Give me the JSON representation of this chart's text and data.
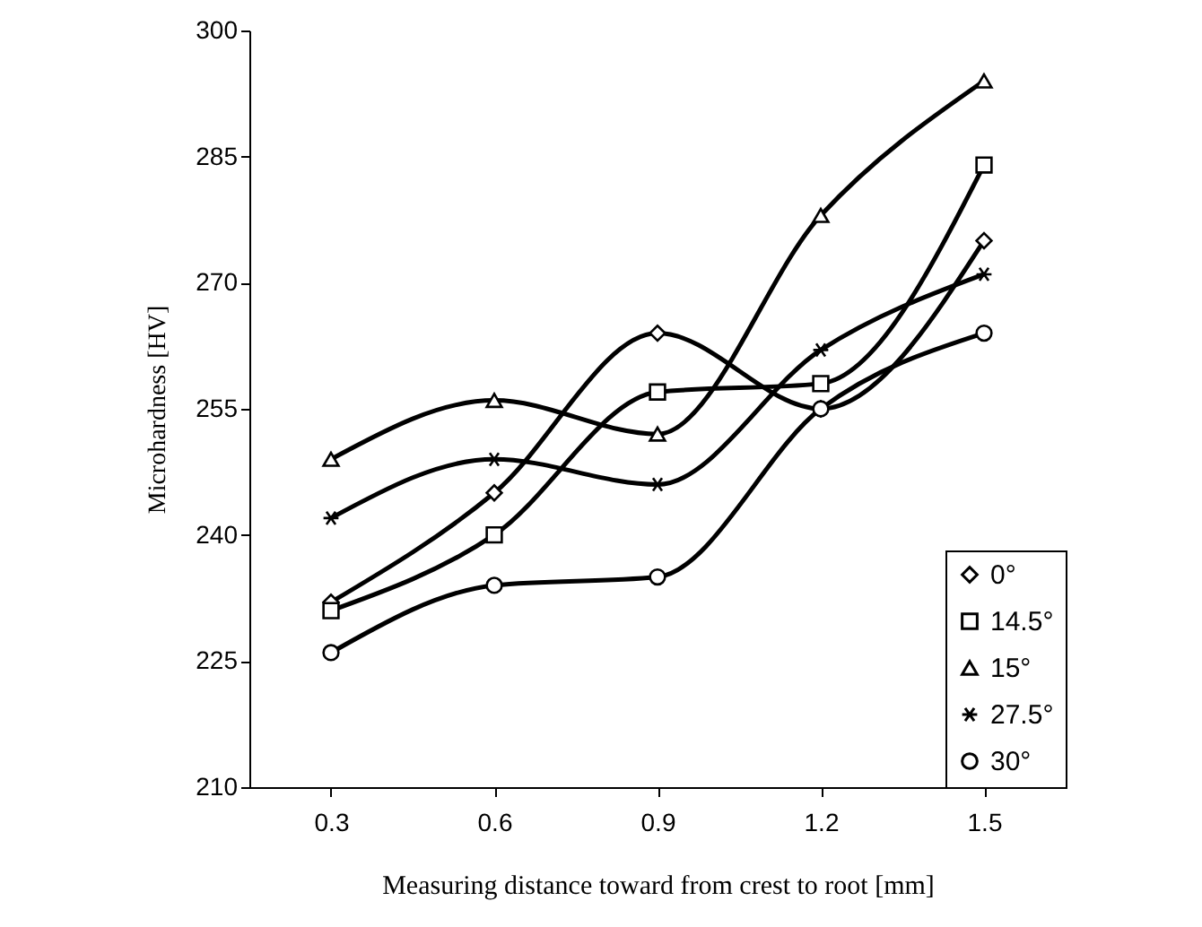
{
  "chart_data": {
    "type": "line",
    "xlabel": "Measuring distance toward from crest to root [mm]",
    "ylabel": "Microhardness  [HV]",
    "x": [
      0.3,
      0.6,
      0.9,
      1.2,
      1.5
    ],
    "xlim": [
      0.15,
      1.65
    ],
    "xticks": [
      0.3,
      0.6,
      0.9,
      1.2,
      1.5
    ],
    "ylim": [
      210,
      300
    ],
    "yticks": [
      210,
      225,
      240,
      255,
      270,
      285,
      300
    ],
    "grid": false,
    "legend": "bottom right",
    "series": [
      {
        "name": "0°",
        "color": "#000000",
        "marker": "diamond",
        "values": [
          232,
          245,
          264,
          255,
          275
        ]
      },
      {
        "name": "14.5°",
        "color": "#000000",
        "marker": "square",
        "values": [
          231,
          240,
          257,
          258,
          284
        ]
      },
      {
        "name": "15°",
        "color": "#000000",
        "marker": "triangle",
        "values": [
          249,
          256,
          252,
          278,
          294
        ]
      },
      {
        "name": "27.5°",
        "color": "#000000",
        "marker": "cross",
        "values": [
          242,
          249,
          246,
          262,
          271
        ]
      },
      {
        "name": "30°",
        "color": "#000000",
        "marker": "circle",
        "values": [
          226,
          234,
          235,
          255,
          264
        ]
      }
    ]
  }
}
